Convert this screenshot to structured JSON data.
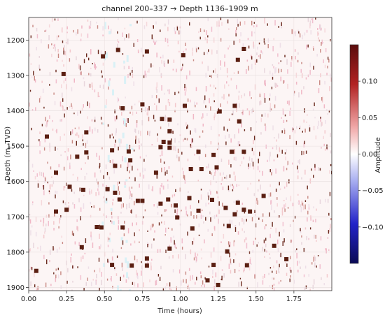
{
  "chart_data": {
    "type": "heatmap",
    "title": "channel 200–337 → Depth 1136–1909 m",
    "xlabel": "Time (hours)",
    "ylabel": "Depth (m, TVD)",
    "colorbar_label": "Amplitude",
    "xlim": [
      0.0,
      2.0
    ],
    "ylim": [
      1909,
      1136
    ],
    "x_ticks": [
      0.0,
      0.25,
      0.5,
      0.75,
      1.0,
      1.25,
      1.5,
      1.75
    ],
    "x_tick_labels": [
      "0.00",
      "0.25",
      "0.50",
      "0.75",
      "1.00",
      "1.25",
      "1.50",
      "1.75"
    ],
    "y_ticks": [
      1200,
      1300,
      1400,
      1500,
      1600,
      1700,
      1800,
      1900
    ],
    "y_tick_labels": [
      "1200",
      "1300",
      "1400",
      "1500",
      "1600",
      "1700",
      "1800",
      "1900"
    ],
    "clim": [
      -0.15,
      0.15
    ],
    "colorbar_ticks": [
      0.1,
      0.05,
      0.0,
      -0.05,
      -0.1
    ],
    "colorbar_tick_labels": [
      "0.10",
      "0.05",
      "0.00",
      "−0.05",
      "−0.10"
    ],
    "colormap": "seismic",
    "colors": {
      "strong_positive": "#5a1f12",
      "mid_positive": "#c04e4e",
      "background": "#fbf3f3",
      "negative": "#1c1c8c"
    },
    "strong_events": [
      {
        "t": 0.23,
        "depth": 1296
      },
      {
        "t": 0.59,
        "depth": 1228
      },
      {
        "t": 0.78,
        "depth": 1232
      },
      {
        "t": 1.42,
        "depth": 1225
      },
      {
        "t": 0.49,
        "depth": 1246
      },
      {
        "t": 1.02,
        "depth": 1243
      },
      {
        "t": 1.38,
        "depth": 1256
      },
      {
        "t": 0.75,
        "depth": 1382
      },
      {
        "t": 1.36,
        "depth": 1386
      },
      {
        "t": 0.62,
        "depth": 1393
      },
      {
        "t": 1.03,
        "depth": 1386
      },
      {
        "t": 1.26,
        "depth": 1402
      },
      {
        "t": 0.88,
        "depth": 1423
      },
      {
        "t": 0.93,
        "depth": 1425
      },
      {
        "t": 1.39,
        "depth": 1430
      },
      {
        "t": 0.93,
        "depth": 1458
      },
      {
        "t": 0.38,
        "depth": 1461
      },
      {
        "t": 0.12,
        "depth": 1473
      },
      {
        "t": 0.89,
        "depth": 1488
      },
      {
        "t": 0.93,
        "depth": 1490
      },
      {
        "t": 0.87,
        "depth": 1503
      },
      {
        "t": 0.93,
        "depth": 1505
      },
      {
        "t": 0.55,
        "depth": 1512
      },
      {
        "t": 0.66,
        "depth": 1515
      },
      {
        "t": 1.12,
        "depth": 1516
      },
      {
        "t": 1.34,
        "depth": 1516
      },
      {
        "t": 1.42,
        "depth": 1516
      },
      {
        "t": 1.22,
        "depth": 1525
      },
      {
        "t": 0.38,
        "depth": 1518
      },
      {
        "t": 0.32,
        "depth": 1530
      },
      {
        "t": 0.67,
        "depth": 1540
      },
      {
        "t": 0.57,
        "depth": 1556
      },
      {
        "t": 1.07,
        "depth": 1565
      },
      {
        "t": 1.14,
        "depth": 1565
      },
      {
        "t": 1.24,
        "depth": 1560
      },
      {
        "t": 0.18,
        "depth": 1575
      },
      {
        "t": 0.84,
        "depth": 1575
      },
      {
        "t": 0.27,
        "depth": 1615
      },
      {
        "t": 0.36,
        "depth": 1624
      },
      {
        "t": 0.52,
        "depth": 1622
      },
      {
        "t": 0.57,
        "depth": 1632
      },
      {
        "t": 0.6,
        "depth": 1651
      },
      {
        "t": 0.72,
        "depth": 1655
      },
      {
        "t": 0.75,
        "depth": 1655
      },
      {
        "t": 0.92,
        "depth": 1651
      },
      {
        "t": 1.06,
        "depth": 1647
      },
      {
        "t": 1.21,
        "depth": 1652
      },
      {
        "t": 1.38,
        "depth": 1660
      },
      {
        "t": 1.55,
        "depth": 1641
      },
      {
        "t": 0.87,
        "depth": 1663
      },
      {
        "t": 0.97,
        "depth": 1668
      },
      {
        "t": 1.3,
        "depth": 1675
      },
      {
        "t": 1.42,
        "depth": 1680
      },
      {
        "t": 1.46,
        "depth": 1685
      },
      {
        "t": 1.36,
        "depth": 1693
      },
      {
        "t": 0.25,
        "depth": 1680
      },
      {
        "t": 0.18,
        "depth": 1685
      },
      {
        "t": 1.12,
        "depth": 1683
      },
      {
        "t": 0.98,
        "depth": 1702
      },
      {
        "t": 1.32,
        "depth": 1726
      },
      {
        "t": 0.45,
        "depth": 1729
      },
      {
        "t": 0.48,
        "depth": 1730
      },
      {
        "t": 0.62,
        "depth": 1730
      },
      {
        "t": 1.08,
        "depth": 1733
      },
      {
        "t": 0.35,
        "depth": 1786
      },
      {
        "t": 0.93,
        "depth": 1790
      },
      {
        "t": 1.31,
        "depth": 1798
      },
      {
        "t": 0.55,
        "depth": 1836
      },
      {
        "t": 0.68,
        "depth": 1838
      },
      {
        "t": 0.78,
        "depth": 1838
      },
      {
        "t": 1.22,
        "depth": 1836
      },
      {
        "t": 1.44,
        "depth": 1837
      },
      {
        "t": 0.05,
        "depth": 1853
      },
      {
        "t": 1.25,
        "depth": 1893
      },
      {
        "t": 1.18,
        "depth": 1880
      },
      {
        "t": 0.78,
        "depth": 1818
      },
      {
        "t": 1.62,
        "depth": 1782
      },
      {
        "t": 1.7,
        "depth": 1820
      }
    ]
  }
}
